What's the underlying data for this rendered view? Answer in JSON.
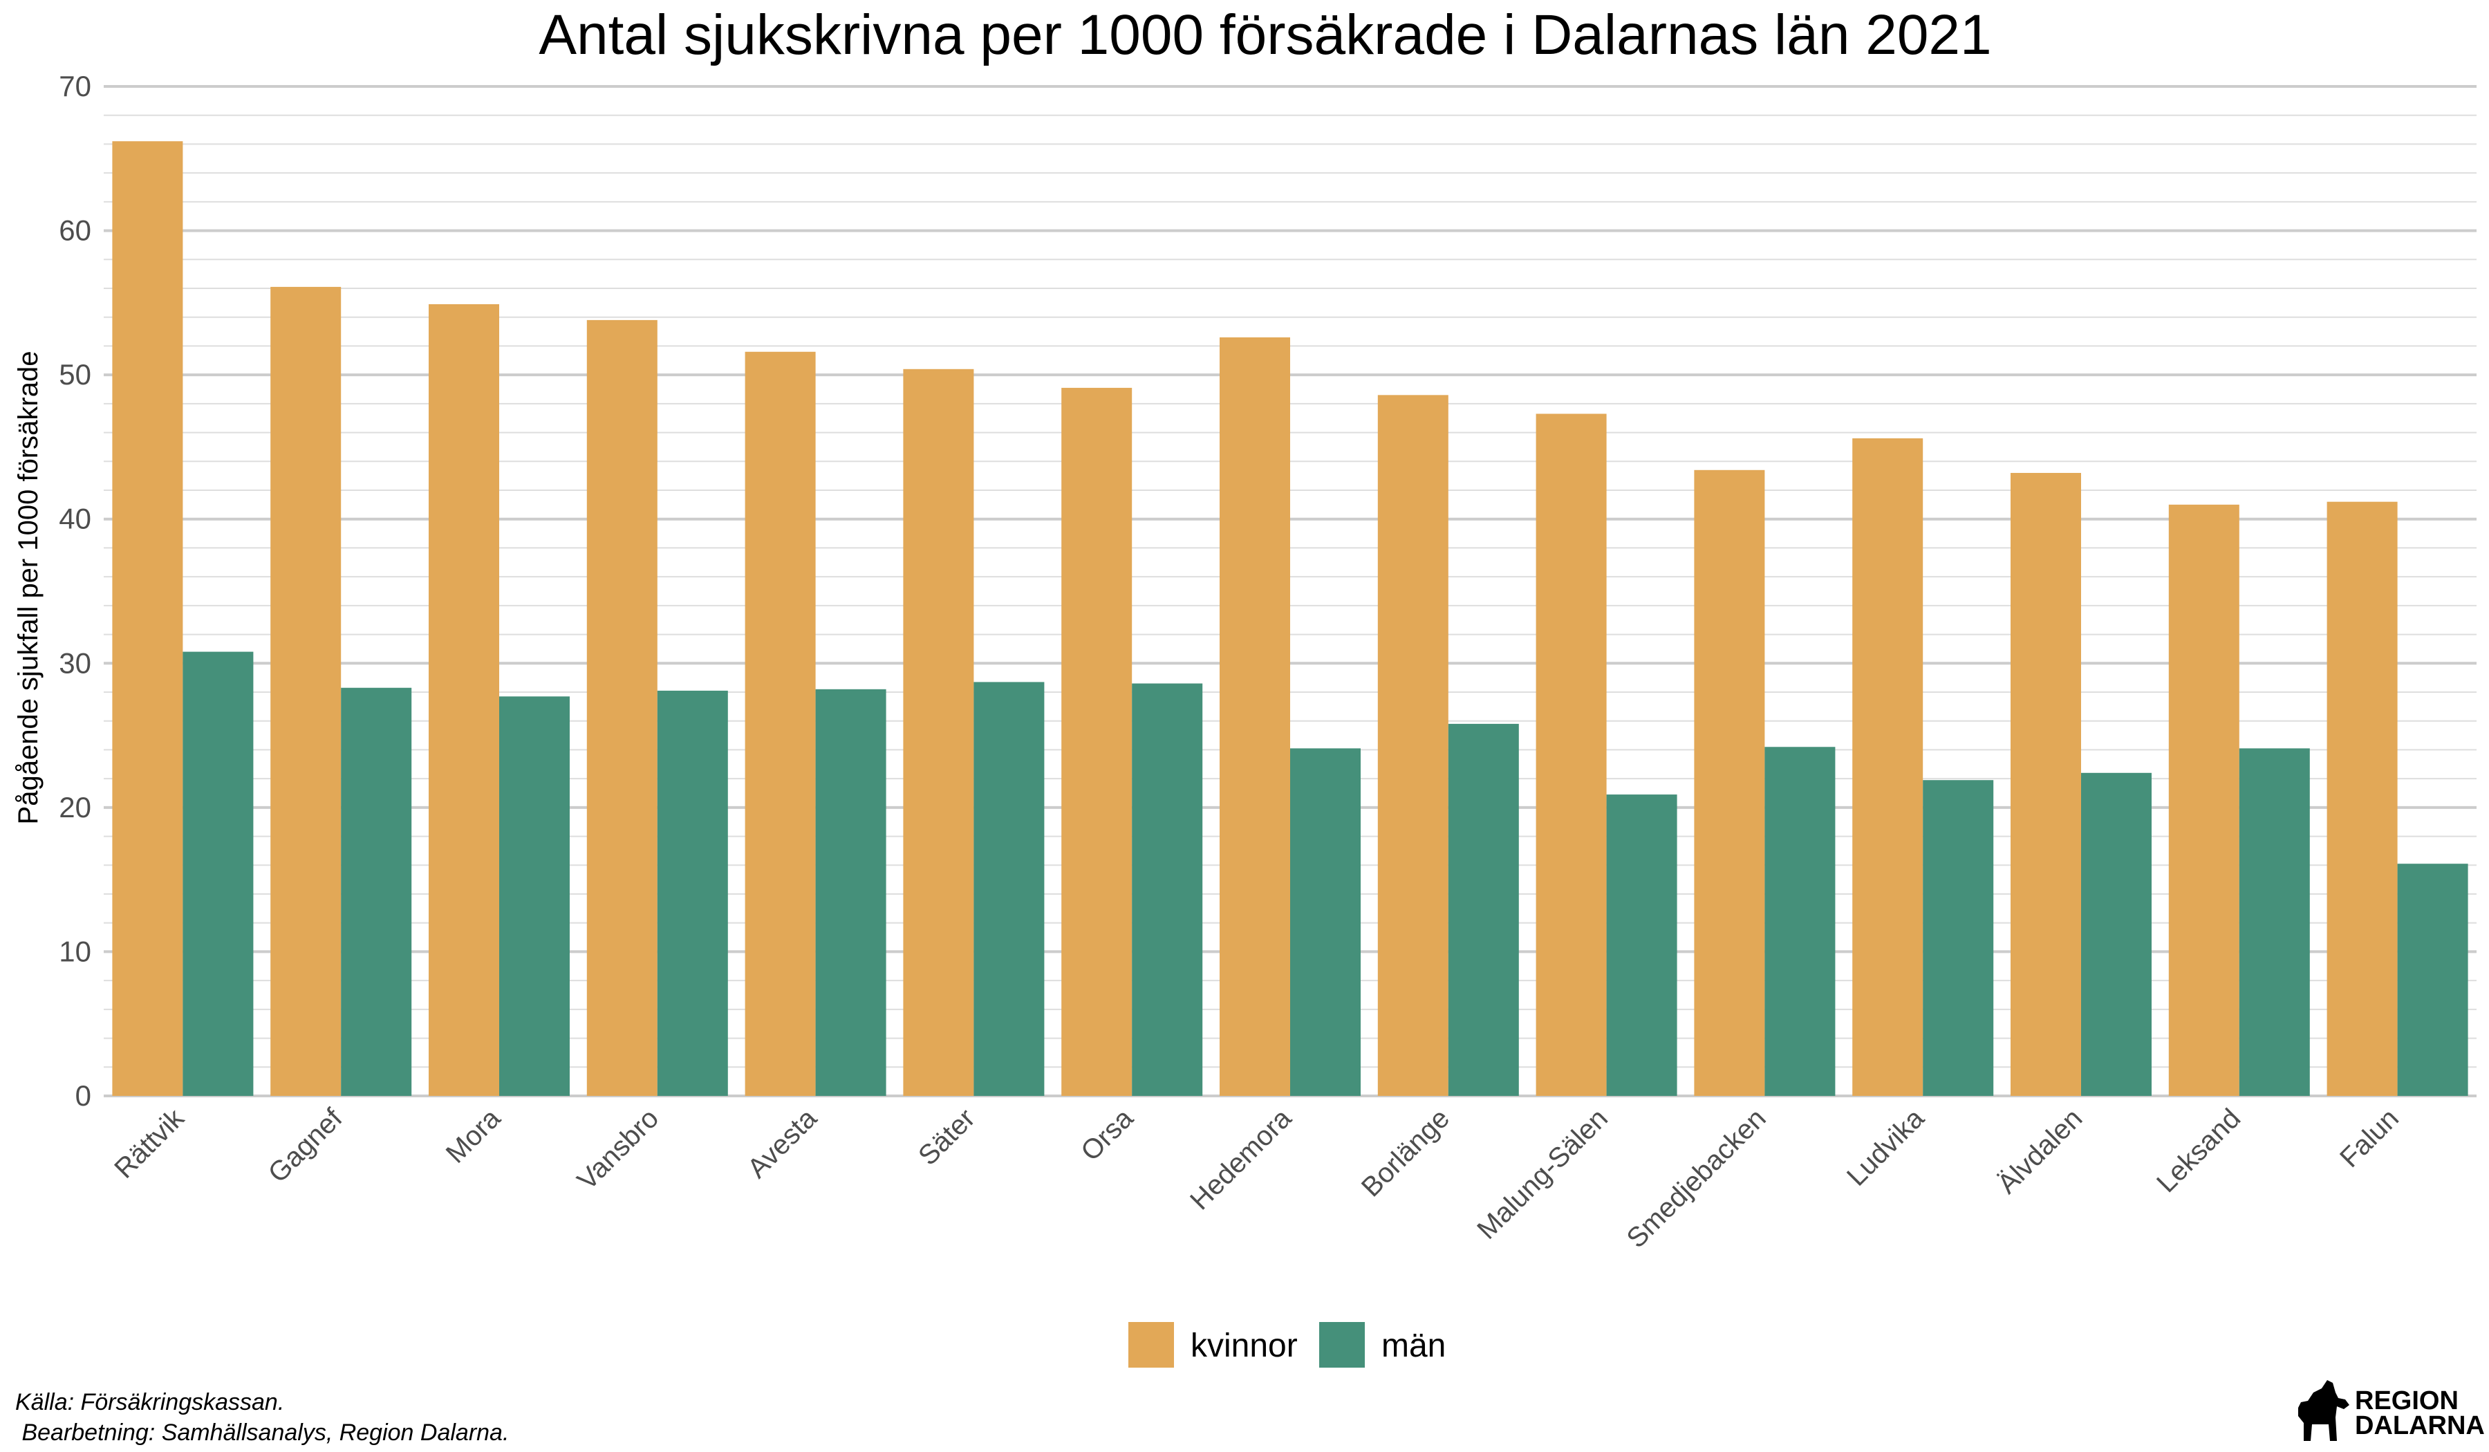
{
  "chart_data": {
    "type": "bar",
    "title": "Antal sjukskrivna per 1000 försäkrade i Dalarnas län 2021",
    "xlabel": "",
    "ylabel": "Pågående sjukfall per 1000 försäkrade",
    "ylim": [
      0,
      70
    ],
    "yticks": [
      0,
      10,
      20,
      30,
      40,
      50,
      60,
      70
    ],
    "grid": true,
    "legend_position": "bottom",
    "categories": [
      "Rättvik",
      "Gagnef",
      "Mora",
      "Vansbro",
      "Avesta",
      "Säter",
      "Orsa",
      "Hedemora",
      "Borlänge",
      "Malung-Sälen",
      "Smedjebacken",
      "Ludvika",
      "Älvdalen",
      "Leksand",
      "Falun"
    ],
    "series": [
      {
        "name": "kvinnor",
        "color": "#E2A857",
        "values": [
          66.2,
          56.1,
          54.9,
          53.8,
          51.6,
          50.4,
          49.1,
          52.6,
          48.6,
          47.3,
          43.4,
          45.6,
          43.2,
          41.0,
          41.2
        ]
      },
      {
        "name": "män",
        "color": "#45907A",
        "values": [
          30.8,
          28.3,
          27.7,
          28.1,
          28.2,
          28.7,
          28.6,
          24.1,
          25.8,
          20.9,
          24.2,
          21.9,
          22.4,
          24.1,
          16.1
        ]
      }
    ]
  },
  "caption": {
    "source": "Källa: Försäkringskassan.",
    "processing": " Bearbetning: Samhällsanalys, Region Dalarna."
  },
  "logo": {
    "line1": "REGION",
    "line2": "DALARNA"
  }
}
